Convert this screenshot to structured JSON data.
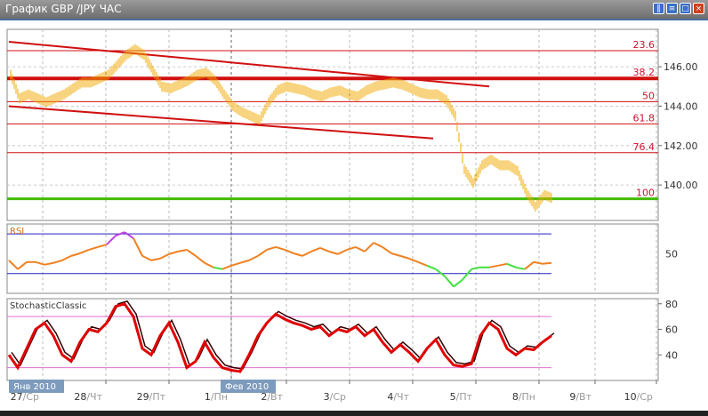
{
  "window": {
    "title": "График GBP /JPY  ЧАС",
    "buttons": [
      "tile",
      "minimize",
      "maximize",
      "close"
    ]
  },
  "chart_data": [
    {
      "type": "line",
      "panel": "price",
      "symbol": "GBP/JPY",
      "timeframe": "ЧАС",
      "yticks": [
        140,
        142,
        144,
        146
      ],
      "yformat": "2 decimals",
      "ylim": [
        138.2,
        147.9
      ],
      "color": "#f0a800",
      "values": [
        145.6,
        144.4,
        144.6,
        144.4,
        144.2,
        144.4,
        144.6,
        144.9,
        145.2,
        145.2,
        145.4,
        145.6,
        146.1,
        146.6,
        146.9,
        146.6,
        145.8,
        145.0,
        144.9,
        145.1,
        145.3,
        145.6,
        145.7,
        145.3,
        144.6,
        144.0,
        143.7,
        143.5,
        143.3,
        144.2,
        144.8,
        145.0,
        144.9,
        144.8,
        144.6,
        144.5,
        144.7,
        144.8,
        144.6,
        144.5,
        144.8,
        145.0,
        145.1,
        145.2,
        145.1,
        144.9,
        144.7,
        144.6,
        144.6,
        144.3,
        143.5,
        140.8,
        140.1,
        141.0,
        141.3,
        141.0,
        141.0,
        140.7,
        139.6,
        138.9,
        139.5,
        139.3
      ],
      "fibonacci": [
        {
          "label": "23.6",
          "price": 146.82
        },
        {
          "label": "38.2",
          "price": 145.41,
          "bold": true
        },
        {
          "label": "50",
          "price": 144.23
        },
        {
          "label": "61.8",
          "price": 143.1
        },
        {
          "label": "76.4",
          "price": 141.64
        },
        {
          "label": "100",
          "price": 139.3,
          "color": "#44bb00"
        }
      ],
      "trendlines": [
        {
          "from": [
            0,
            147.27
          ],
          "to": [
            54,
            145.0
          ]
        },
        {
          "from": [
            0,
            144.0
          ],
          "to": [
            47.7,
            142.36
          ]
        }
      ]
    },
    {
      "type": "line",
      "panel": "RSI",
      "title": "RSI",
      "levels": [
        70,
        30
      ],
      "yticks": [
        50
      ],
      "ylim": [
        10,
        80
      ],
      "values": [
        43.3,
        34.4,
        41.6,
        41.6,
        38.9,
        40.7,
        43.3,
        47.8,
        50.4,
        54,
        56.7,
        59.3,
        68.2,
        71.8,
        65.6,
        47.8,
        43.3,
        45.1,
        49.6,
        52.2,
        54,
        47.8,
        40.7,
        36.2,
        34.4,
        38,
        40.7,
        43.3,
        47.8,
        54,
        56.7,
        54,
        50.4,
        47.8,
        52.2,
        55.8,
        52.2,
        49.6,
        54,
        56.7,
        52.2,
        61.1,
        56.7,
        50.4,
        47.8,
        45.1,
        41.6,
        38,
        34.4,
        27.3,
        16.7,
        23.8,
        34.4,
        36.2,
        36.2,
        38,
        39.8,
        36.2,
        34.4,
        41.6,
        39.8,
        40.7
      ]
    },
    {
      "type": "line",
      "panel": "stochastic",
      "title": "StochasticClassic",
      "levels": [
        70,
        30
      ],
      "yticks": [
        80,
        60,
        40
      ],
      "ylim": [
        20,
        84
      ],
      "values": [
        40,
        30,
        45,
        60,
        65,
        55,
        40,
        35,
        50,
        60,
        58,
        65,
        78,
        80,
        70,
        45,
        40,
        55,
        65,
        50,
        30,
        35,
        50,
        38,
        30,
        28,
        27,
        40,
        55,
        65,
        72,
        68,
        65,
        63,
        60,
        62,
        55,
        60,
        58,
        62,
        55,
        60,
        50,
        42,
        48,
        42,
        35,
        45,
        52,
        40,
        32,
        31,
        33,
        55,
        65,
        60,
        45,
        40,
        45,
        44,
        50,
        55
      ]
    }
  ],
  "xaxis": {
    "ticks": [
      {
        "day": "27",
        "wd": "Ср"
      },
      {
        "day": "28",
        "wd": "Чт"
      },
      {
        "day": "29",
        "wd": "Пт"
      },
      {
        "day": "1",
        "wd": "Пн"
      },
      {
        "day": "2",
        "wd": "Вт"
      },
      {
        "day": "3",
        "wd": "Ср"
      },
      {
        "day": "4",
        "wd": "Чт"
      },
      {
        "day": "5",
        "wd": "Пт"
      },
      {
        "day": "8",
        "wd": "Пн"
      },
      {
        "day": "9",
        "wd": "Вт"
      },
      {
        "day": "10",
        "wd": "Ср"
      }
    ],
    "months": [
      {
        "label": "Янв 2010",
        "at": 0
      },
      {
        "label": "Фев 2010",
        "at": 3
      }
    ]
  }
}
